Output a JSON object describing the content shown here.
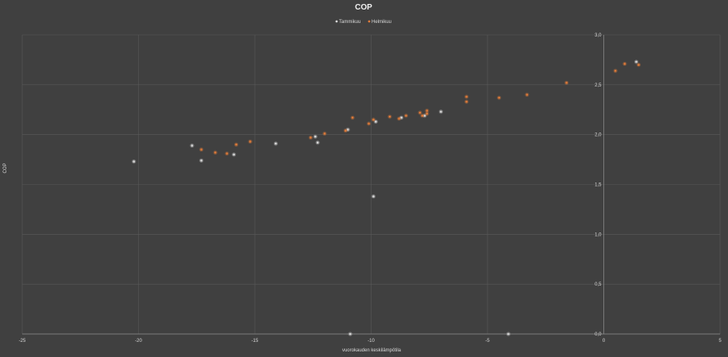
{
  "chart_data": {
    "type": "scatter",
    "title": "COP",
    "xlabel": "vuorokauden keskilämpötila",
    "ylabel": "COP",
    "xlim": [
      -25,
      5
    ],
    "ylim": [
      0,
      3
    ],
    "x_ticks": [
      -25,
      -20,
      -15,
      -10,
      -5,
      0,
      5
    ],
    "x_tick_labels": [
      "-25",
      "-20",
      "-15",
      "-10",
      "-5",
      "0",
      "5"
    ],
    "y_ticks": [
      0,
      0.5,
      1,
      1.5,
      2,
      2.5,
      3
    ],
    "y_tick_labels": [
      "0,0",
      "0,5",
      "1,0",
      "1,5",
      "2,0",
      "2,5",
      "3,0"
    ],
    "grid": true,
    "legend_position": "top",
    "series": [
      {
        "name": "Tammikuu",
        "color": "#d9d9d9",
        "points": [
          {
            "x": -20.2,
            "y": 1.73
          },
          {
            "x": -17.7,
            "y": 1.89
          },
          {
            "x": -17.3,
            "y": 1.74
          },
          {
            "x": -15.9,
            "y": 1.8
          },
          {
            "x": -14.1,
            "y": 1.91
          },
          {
            "x": -12.4,
            "y": 1.98
          },
          {
            "x": -12.3,
            "y": 1.92
          },
          {
            "x": -11.0,
            "y": 2.05
          },
          {
            "x": -10.9,
            "y": 0.0
          },
          {
            "x": -9.9,
            "y": 1.38
          },
          {
            "x": -9.8,
            "y": 2.13
          },
          {
            "x": -8.7,
            "y": 2.17
          },
          {
            "x": -7.7,
            "y": 2.19
          },
          {
            "x": -7.0,
            "y": 2.23
          },
          {
            "x": -4.1,
            "y": 0.0
          },
          {
            "x": 1.4,
            "y": 2.73
          }
        ]
      },
      {
        "name": "Helmikuu",
        "color": "#e07b39",
        "points": [
          {
            "x": -17.3,
            "y": 1.85
          },
          {
            "x": -16.7,
            "y": 1.82
          },
          {
            "x": -16.2,
            "y": 1.81
          },
          {
            "x": -15.8,
            "y": 1.9
          },
          {
            "x": -15.2,
            "y": 1.93
          },
          {
            "x": -12.6,
            "y": 1.97
          },
          {
            "x": -12.0,
            "y": 2.01
          },
          {
            "x": -11.1,
            "y": 2.04
          },
          {
            "x": -10.8,
            "y": 2.17
          },
          {
            "x": -10.1,
            "y": 2.11
          },
          {
            "x": -9.9,
            "y": 2.15
          },
          {
            "x": -9.2,
            "y": 2.18
          },
          {
            "x": -8.8,
            "y": 2.16
          },
          {
            "x": -8.5,
            "y": 2.19
          },
          {
            "x": -7.9,
            "y": 2.22
          },
          {
            "x": -7.8,
            "y": 2.19
          },
          {
            "x": -7.6,
            "y": 2.21
          },
          {
            "x": -7.6,
            "y": 2.24
          },
          {
            "x": -5.9,
            "y": 2.33
          },
          {
            "x": -5.9,
            "y": 2.38
          },
          {
            "x": -4.5,
            "y": 2.37
          },
          {
            "x": -3.3,
            "y": 2.4
          },
          {
            "x": -1.6,
            "y": 2.52
          },
          {
            "x": 0.5,
            "y": 2.64
          },
          {
            "x": 0.9,
            "y": 2.71
          },
          {
            "x": 1.5,
            "y": 2.7
          }
        ]
      }
    ]
  }
}
